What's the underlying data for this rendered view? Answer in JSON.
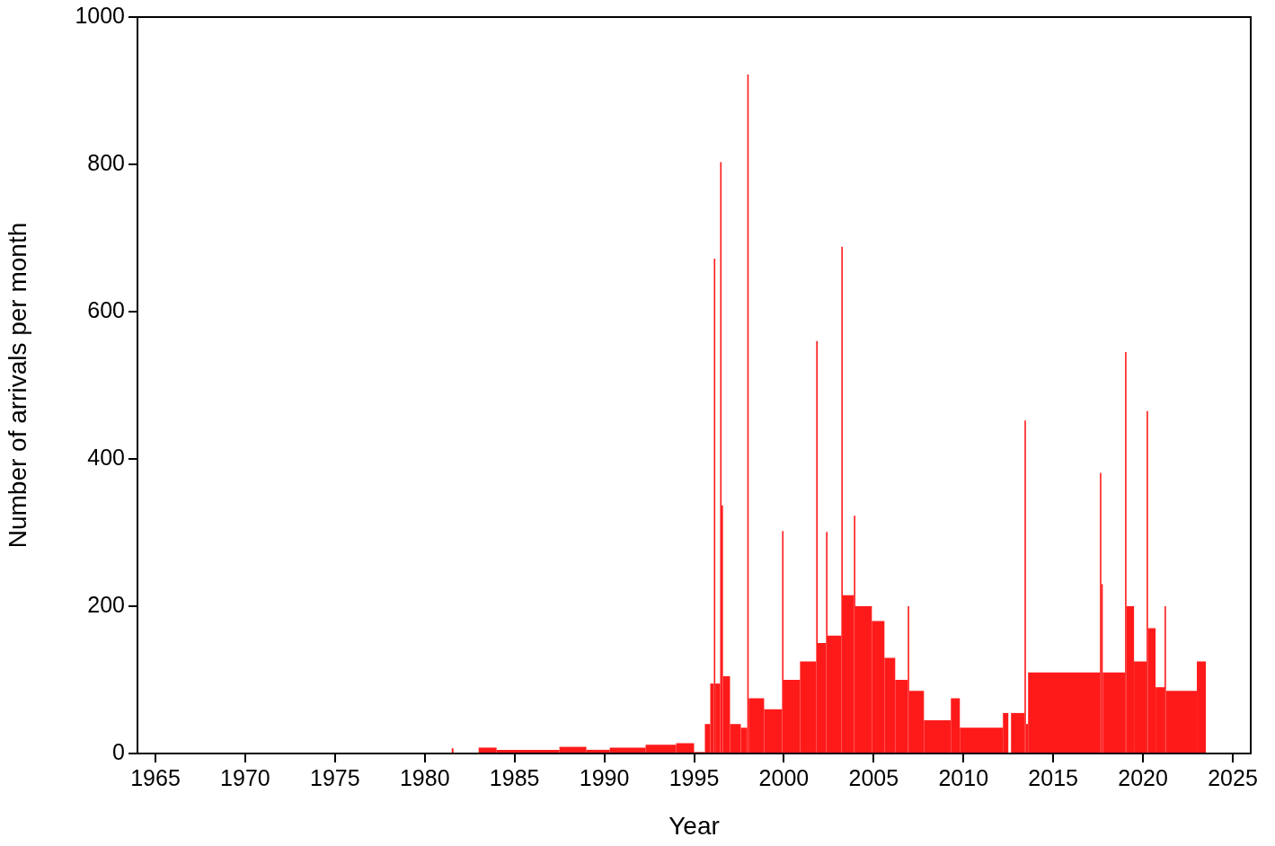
{
  "chart_data": {
    "type": "histogram",
    "xlabel": "Year",
    "ylabel": "Number of arrivals per month",
    "color": "#ff1a1a",
    "bins": [
      1981.5,
      1981.6,
      1983.0,
      1984.0,
      1987.5,
      1989.0,
      1990.3,
      1992.3,
      1994.0,
      1995.0,
      1995.6,
      1995.9,
      1996.1,
      1996.18,
      1996.45,
      1996.53,
      1996.61,
      1997.0,
      1997.6,
      1997.96,
      1998.04,
      1998.9,
      1999.9,
      1999.98,
      2000.9,
      2001.8,
      2001.88,
      2002.35,
      2002.43,
      2003.2,
      2003.28,
      2003.9,
      2003.98,
      2004.9,
      2005.6,
      2006.2,
      2006.9,
      2006.98,
      2007.8,
      2009.3,
      2009.8,
      2012.2,
      2012.5,
      2012.65,
      2013.4,
      2013.48,
      2013.6,
      2017.6,
      2017.68,
      2017.76,
      2019.0,
      2019.08,
      2019.5,
      2020.2,
      2020.28,
      2020.7,
      2021.2,
      2021.28,
      2023.0,
      2023.5
    ],
    "values": [
      7,
      0,
      8,
      5,
      9,
      5,
      8,
      12,
      14,
      2,
      40,
      95,
      672,
      95,
      803,
      337,
      105,
      40,
      35,
      922,
      75,
      60,
      302,
      100,
      125,
      560,
      150,
      301,
      160,
      688,
      215,
      323,
      200,
      180,
      130,
      100,
      200,
      85,
      45,
      75,
      35,
      55,
      0,
      55,
      452,
      40,
      110,
      381,
      230,
      110,
      545,
      200,
      125,
      465,
      170,
      90,
      200,
      85,
      125
    ],
    "xlim": [
      1964,
      2026
    ],
    "xticks": [
      1965,
      1970,
      1975,
      1980,
      1985,
      1990,
      1995,
      2000,
      2005,
      2010,
      2015,
      2020,
      2025
    ],
    "ylim": [
      0,
      1000
    ],
    "yticks": [
      0,
      200,
      400,
      600,
      800,
      1000
    ],
    "grid": false
  }
}
